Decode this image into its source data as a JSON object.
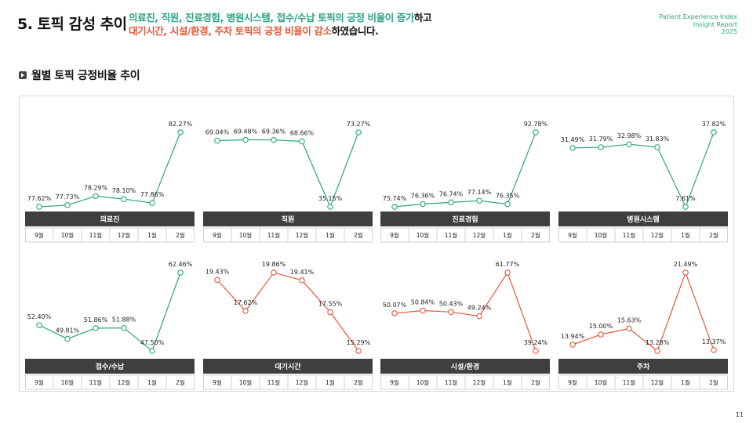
{
  "header": {
    "title": "5. 토픽 감성 추이",
    "summary_l1_green": "의료진, 직원, 진료경험, 병원시스템, 접수/수납 토픽의 긍정 비율이 증가",
    "summary_l1_dark": "하고",
    "summary_l2_red": "대기시간, 시설/환경, 주차 토픽의 긍정 비율이 감소",
    "summary_l2_dark": "하였습니다.",
    "brand_line1": "Patient Experience Index",
    "brand_line2": "Insight Report",
    "brand_line3": "2025"
  },
  "section_title": "월별 토픽 긍정비율 추이",
  "page_number": "11",
  "colors": {
    "increase": "#2ca47f",
    "decrease": "#e8573b",
    "label_bar": "#3f3f3f"
  },
  "chart_data": [
    {
      "type": "line",
      "name": "의료진",
      "trend": "increase",
      "categories": [
        "9월",
        "10월",
        "11월",
        "12월",
        "1월",
        "2월"
      ],
      "values": [
        77.62,
        77.73,
        78.29,
        78.1,
        77.86,
        82.27
      ],
      "labels": [
        "77.62%",
        "77.73%",
        "78.29%",
        "78.10%",
        "77.86%",
        "82.27%"
      ]
    },
    {
      "type": "line",
      "name": "직원",
      "trend": "increase",
      "categories": [
        "9월",
        "10월",
        "11월",
        "12월",
        "1월",
        "2월"
      ],
      "values": [
        69.04,
        69.48,
        69.36,
        68.66,
        35.15,
        73.27
      ],
      "labels": [
        "69.04%",
        "69.48%",
        "69.36%",
        "68.66%",
        "35.15%",
        "73.27%"
      ]
    },
    {
      "type": "line",
      "name": "진료경험",
      "trend": "increase",
      "categories": [
        "9월",
        "10월",
        "11월",
        "12월",
        "1월",
        "2월"
      ],
      "values": [
        75.74,
        76.36,
        76.74,
        77.14,
        76.35,
        92.78
      ],
      "labels": [
        "75.74%",
        "76.36%",
        "76.74%",
        "77.14%",
        "76.35%",
        "92.78%"
      ]
    },
    {
      "type": "line",
      "name": "병원시스템",
      "trend": "increase",
      "categories": [
        "9월",
        "10월",
        "11월",
        "12월",
        "1월",
        "2월"
      ],
      "values": [
        31.49,
        31.79,
        32.98,
        31.83,
        7.61,
        37.82
      ],
      "labels": [
        "31.49%",
        "31.79%",
        "32.98%",
        "31.83%",
        "7.61%",
        "37.82%"
      ]
    },
    {
      "type": "line",
      "name": "접수/수납",
      "trend": "increase",
      "categories": [
        "9월",
        "10월",
        "11월",
        "12월",
        "1월",
        "2월"
      ],
      "values": [
        52.4,
        49.81,
        51.86,
        51.88,
        47.5,
        62.46
      ],
      "labels": [
        "52.40%",
        "49.81%",
        "51.86%",
        "51.88%",
        "47.50%",
        "62.46%"
      ]
    },
    {
      "type": "line",
      "name": "대기시간",
      "trend": "decrease",
      "categories": [
        "9월",
        "10월",
        "11월",
        "12월",
        "1월",
        "2월"
      ],
      "values": [
        19.43,
        17.62,
        19.86,
        19.41,
        17.55,
        15.29
      ],
      "labels": [
        "19.43%",
        "17.62%",
        "19.86%",
        "19.41%",
        "17.55%",
        "15.29%"
      ]
    },
    {
      "type": "line",
      "name": "시설/환경",
      "trend": "decrease",
      "categories": [
        "9월",
        "10월",
        "11월",
        "12월",
        "1월",
        "2월"
      ],
      "values": [
        50.07,
        50.84,
        50.43,
        49.24,
        61.77,
        39.24
      ],
      "labels": [
        "50.07%",
        "50.84%",
        "50.43%",
        "49.24%",
        "61.77%",
        "39.24%"
      ]
    },
    {
      "type": "line",
      "name": "주차",
      "trend": "decrease",
      "categories": [
        "9월",
        "10월",
        "11월",
        "12월",
        "1월",
        "2월"
      ],
      "values": [
        13.94,
        15.0,
        15.63,
        13.28,
        21.49,
        13.37
      ],
      "labels": [
        "13.94%",
        "15.00%",
        "15.63%",
        "13.28%",
        "21.49%",
        "13.37%"
      ]
    }
  ]
}
